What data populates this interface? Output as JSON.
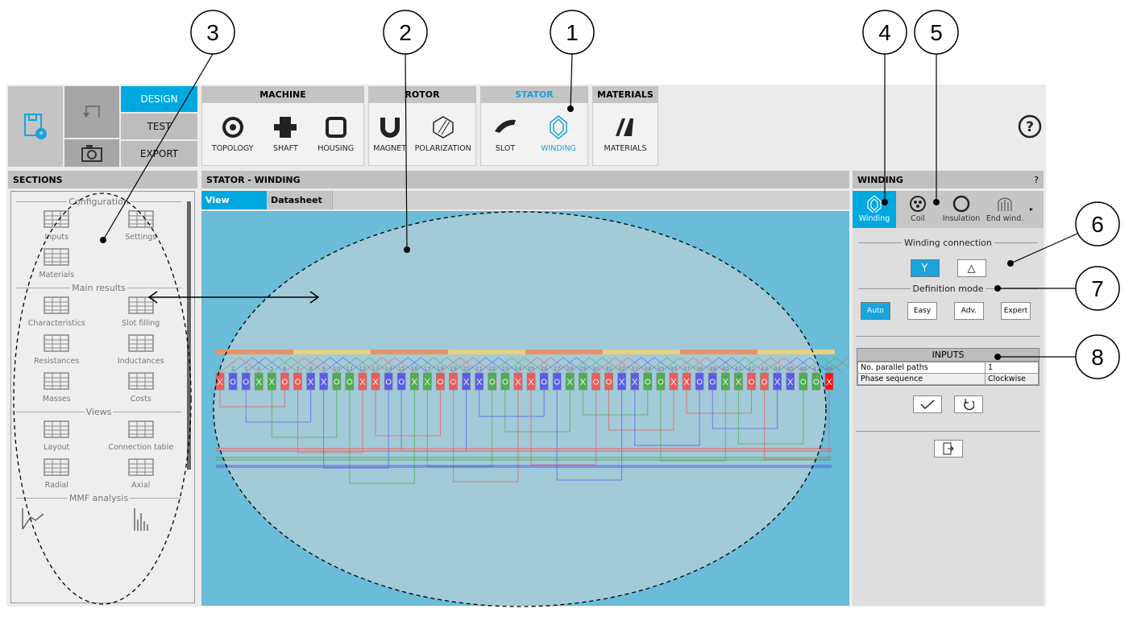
{
  "toolbar": {
    "modes": [
      "DESIGN",
      "TEST",
      "EXPORT"
    ],
    "active_mode": "DESIGN",
    "groups": [
      {
        "title": "MACHINE",
        "items": [
          "TOPOLOGY",
          "SHAFT",
          "HOUSING"
        ]
      },
      {
        "title": "ROTOR",
        "items": [
          "MAGNET",
          "POLARIZATION"
        ]
      },
      {
        "title": "STATOR",
        "items": [
          "SLOT",
          "WINDING"
        ],
        "active": "WINDING"
      },
      {
        "title": "MATERIALS",
        "items": [
          "MATERIALS"
        ]
      }
    ]
  },
  "sections": {
    "title": "SECTIONS",
    "groups": [
      {
        "title": "Configuration",
        "items": [
          "Inputs",
          "Settings",
          "Materials"
        ]
      },
      {
        "title": "Main results",
        "items": [
          "Characteristics",
          "Slot filling",
          "Resistances",
          "Inductances",
          "Masses",
          "Costs"
        ]
      },
      {
        "title": "Views",
        "items": [
          "Layout",
          "Connection table",
          "Radial",
          "Axial"
        ]
      },
      {
        "title": "MMF analysis",
        "items": []
      }
    ]
  },
  "main": {
    "title": "STATOR - WINDING",
    "tabs": [
      "View",
      "Datasheet"
    ],
    "active_tab": "View",
    "slot_count": 48
  },
  "winding_panel": {
    "title": "WINDING",
    "help": "?",
    "tabs": [
      "Winding",
      "Coil",
      "Insulation",
      "End wind."
    ],
    "active_tab": "Winding",
    "connection_label": "Winding connection",
    "connection_options": [
      "Y",
      "△"
    ],
    "connection_selected": "Y",
    "mode_label": "Definition mode",
    "modes": [
      "Auto",
      "Easy",
      "Adv.",
      "Expert"
    ],
    "mode_selected": "Auto",
    "inputs_title": "INPUTS",
    "inputs": [
      {
        "label": "No. parallel paths",
        "value": "1"
      },
      {
        "label": "Phase sequence",
        "value": "Clockwise"
      }
    ]
  },
  "callouts": [
    "1",
    "2",
    "3",
    "4",
    "5",
    "6",
    "7",
    "8"
  ],
  "colors": {
    "accent": "#00a8e0",
    "phase_a": "#f05a5a",
    "phase_b": "#5a5af0",
    "phase_c": "#4caf50",
    "canvas": "#6bbcd8"
  }
}
